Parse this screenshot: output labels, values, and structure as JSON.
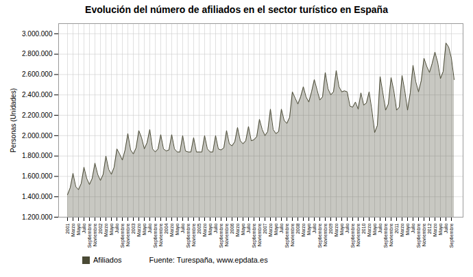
{
  "chart_data": {
    "type": "area",
    "title": "Evolución del número de afiliados en el sector turístico en España",
    "y_label": "Personas (Unidades)",
    "annotations": [
      "Fuente: Turespaña, www.epdata.es"
    ],
    "legend": "bottom",
    "grid": true,
    "ylim": [
      1200000,
      3100000
    ],
    "yticks": [
      {
        "value": 1200000,
        "label": "1.200.000"
      },
      {
        "value": 1400000,
        "label": "1.400.000"
      },
      {
        "value": 1600000,
        "label": "1.600.000"
      },
      {
        "value": 1800000,
        "label": "1.800.000"
      },
      {
        "value": 2000000,
        "label": "2.000.000"
      },
      {
        "value": 2200000,
        "label": "2.200.000"
      },
      {
        "value": 2400000,
        "label": "2.400.000"
      },
      {
        "value": 2600000,
        "label": "2.600.000"
      },
      {
        "value": 2800000,
        "label": "2.800.000"
      },
      {
        "value": 3000000,
        "label": "3.000.000"
      }
    ],
    "categories": [
      "2001",
      null,
      "Marzo",
      null,
      "Mayo",
      null,
      "Julio",
      null,
      "Septiembre",
      null,
      "Noviembre",
      null,
      "2002",
      null,
      "Marzo",
      null,
      "Mayo",
      null,
      "Julio",
      null,
      "Septiembre",
      null,
      "Noviembre",
      null,
      "2003",
      null,
      "Marzo",
      null,
      "Mayo",
      null,
      "Julio",
      null,
      "Septiembre",
      null,
      "Noviembre",
      null,
      "2004",
      null,
      "Marzo",
      null,
      "Mayo",
      null,
      "Julio",
      null,
      "Septiembre",
      null,
      "Noviembre",
      null,
      "2005",
      null,
      "Marzo",
      null,
      "Mayo",
      null,
      "Julio",
      null,
      "Septiembre",
      null,
      "Noviembre",
      null,
      "2006",
      null,
      "Marzo",
      null,
      "Mayo",
      null,
      "Julio",
      null,
      "Septiembre",
      null,
      "Noviembre",
      null,
      "2007",
      null,
      "Marzo",
      null,
      "Mayo",
      null,
      "Julio",
      null,
      "Septiembre",
      null,
      "Noviembre",
      null,
      "2008",
      null,
      "Marzo",
      null,
      "Mayo",
      null,
      "Julio",
      null,
      "Septiembre",
      null,
      "Noviembre",
      null,
      "2009",
      null,
      "Marzo",
      null,
      "Mayo",
      null,
      "Julio",
      null,
      "Septiembre",
      null,
      "Noviembre",
      null,
      "2010",
      null,
      "Marzo",
      null,
      "Mayo",
      null,
      "Julio",
      null,
      "Septiembre",
      null,
      "Noviembre",
      null,
      "2011",
      null,
      "Marzo",
      null,
      "Mayo",
      null,
      "Julio",
      null,
      "Septiembre",
      null,
      "Noviembre",
      null,
      "2012",
      null,
      "Marzo",
      null,
      "Mayo",
      null,
      "Julio",
      null,
      "Septiembre",
      null
    ],
    "series": [
      {
        "name": "Afiliados",
        "color": "#4a4a35",
        "values": [
          1420000,
          1490000,
          1630000,
          1500000,
          1470000,
          1530000,
          1690000,
          1580000,
          1520000,
          1580000,
          1730000,
          1620000,
          1560000,
          1620000,
          1800000,
          1670000,
          1620000,
          1690000,
          1870000,
          1820000,
          1760000,
          1860000,
          2020000,
          1860000,
          1820000,
          1880000,
          2050000,
          1980000,
          1870000,
          1930000,
          2060000,
          1870000,
          1840000,
          1870000,
          2010000,
          1870000,
          1850000,
          1860000,
          2010000,
          1870000,
          1840000,
          1840000,
          2000000,
          1850000,
          1840000,
          1840000,
          1980000,
          1840000,
          1840000,
          1840000,
          2000000,
          1870000,
          1840000,
          1840000,
          2000000,
          1870000,
          1860000,
          1880000,
          2050000,
          1920000,
          1900000,
          1940000,
          2080000,
          1950000,
          1920000,
          1950000,
          2090000,
          1950000,
          1960000,
          1990000,
          2160000,
          2060000,
          2000000,
          2040000,
          2260000,
          2060000,
          2020000,
          2040000,
          2260000,
          2150000,
          2120000,
          2180000,
          2430000,
          2370000,
          2310000,
          2380000,
          2480000,
          2380000,
          2330000,
          2430000,
          2550000,
          2450000,
          2350000,
          2380000,
          2620000,
          2460000,
          2400000,
          2430000,
          2640000,
          2480000,
          2430000,
          2440000,
          2430000,
          2290000,
          2280000,
          2330000,
          2260000,
          2420000,
          2300000,
          2320000,
          2430000,
          2250000,
          2030000,
          2100000,
          2580000,
          2420000,
          2250000,
          2310000,
          2570000,
          2440000,
          2250000,
          2280000,
          2590000,
          2440000,
          2250000,
          2420000,
          2690000,
          2530000,
          2430000,
          2540000,
          2760000,
          2680000,
          2620000,
          2710000,
          2820000,
          2720000,
          2560000,
          2630000,
          2910000,
          2870000,
          2760000,
          2550000
        ]
      }
    ]
  }
}
